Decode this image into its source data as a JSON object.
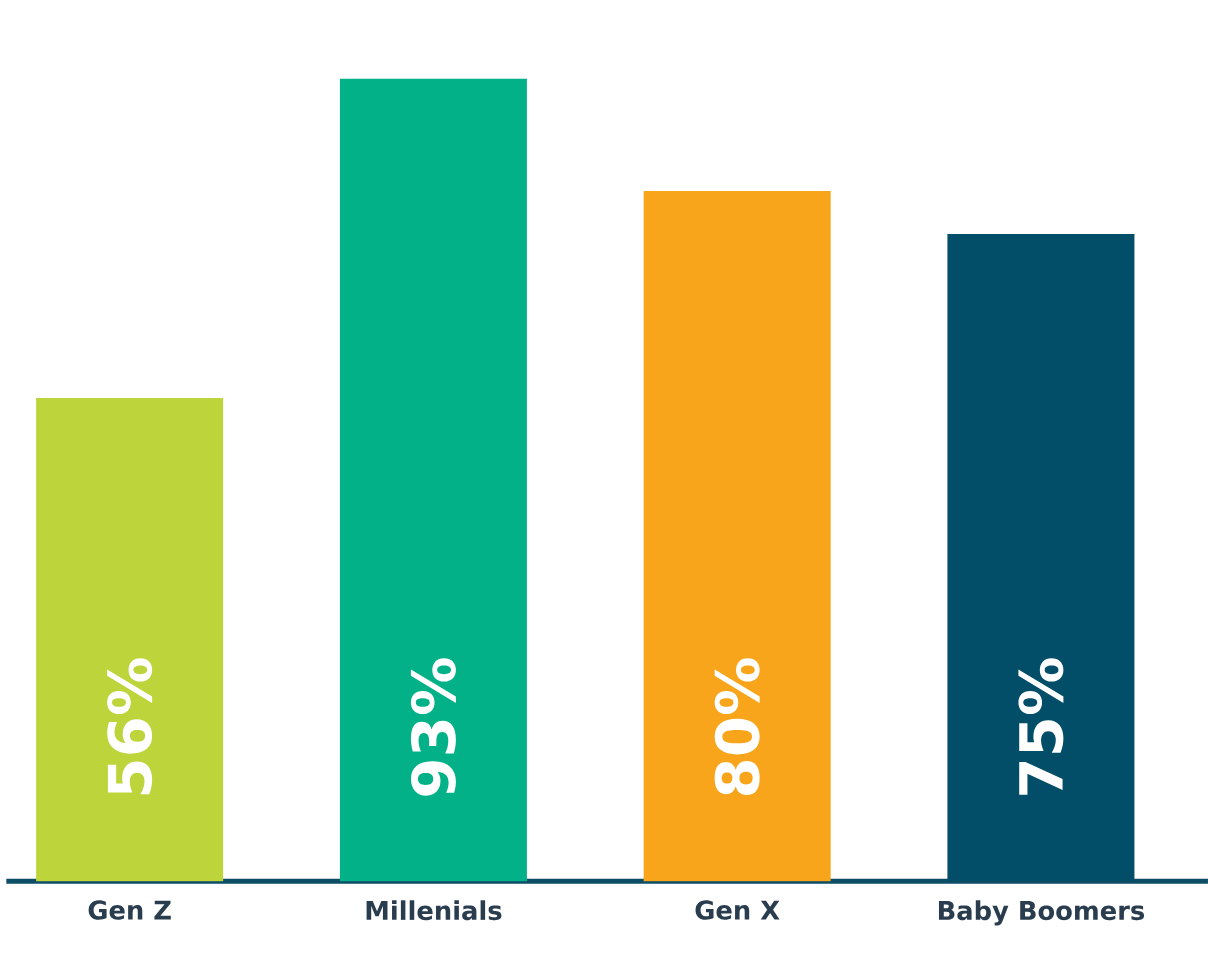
{
  "chart_data": {
    "type": "bar",
    "categories": [
      "Gen Z",
      "Millenials",
      "Gen X",
      "Baby Boomers"
    ],
    "values": [
      56,
      93,
      80,
      75
    ],
    "colors": [
      "#bdd43b",
      "#02b187",
      "#f9a51b",
      "#024d67"
    ],
    "value_labels": [
      "56%",
      "93%",
      "80%",
      "75%"
    ]
  }
}
